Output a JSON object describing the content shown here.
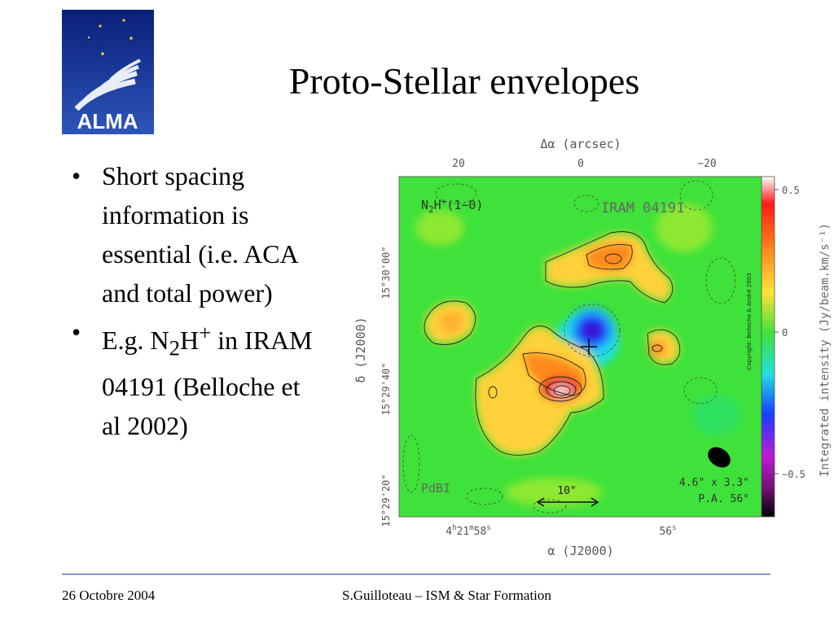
{
  "slide": {
    "title": "Proto-Stellar envelopes",
    "logo_text": "ALMA",
    "bullets": [
      {
        "text_html": "Short spacing information is essential (i.e. ACA and total power)"
      },
      {
        "text_html": "E.g. N<sub>2</sub>H<sup>+</sup> in IRAM 04191 (Belloche et al 2002)"
      }
    ]
  },
  "figure": {
    "top_axis_label": "Δα (arcsec)",
    "top_ticks": [
      "20",
      "0",
      "−20"
    ],
    "left_axis_label": "δ (J2000)",
    "left_ticks": [
      "15°30'00\"",
      "15°29'40\"",
      "15°29'20\""
    ],
    "bottom_axis_label": "α (J2000)",
    "bottom_ticks": [
      "4h21m58s",
      "56s"
    ],
    "line_label": "N2H+(1−0)",
    "source_label": "IRAM 04191",
    "instrument_label": "PdBI",
    "scale_bar_label": "10\"",
    "beam_label": "4.6\" x 3.3\"",
    "pa_label": "P.A. 56°",
    "copyright": "Copyright: Belloche & André 2003",
    "colorbar_ticks": [
      "0.5",
      "0",
      "−0.5"
    ],
    "colorbar_label": "Integrated intensity (Jy/beam.km/s⁻¹)",
    "colors": {
      "map_green": "#3ee23a",
      "map_orange": "#ff8a1e",
      "map_red": "#e8281e",
      "map_blue": "#1010e0"
    }
  },
  "footer": {
    "date": "26 Octobre 2004",
    "credit": "S.Guilloteau – ISM & Star Formation"
  }
}
